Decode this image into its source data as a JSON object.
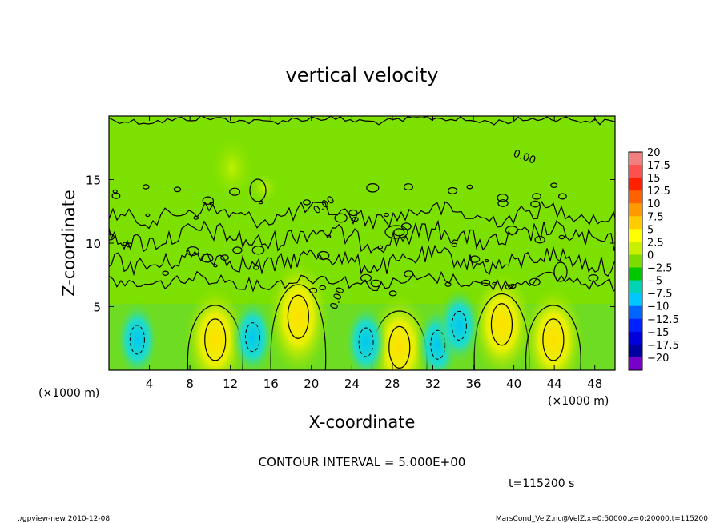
{
  "chart_data": {
    "type": "heatmap",
    "title": "vertical velocity",
    "xlabel": "X-coordinate",
    "ylabel": "Z-coordinate",
    "x_unit_left": "(×1000 m)",
    "x_unit_right": "(×1000 m)",
    "xlim": [
      0,
      50
    ],
    "ylim": [
      0,
      20
    ],
    "x_ticks": [
      4,
      8,
      12,
      16,
      20,
      24,
      28,
      32,
      36,
      40,
      44,
      48
    ],
    "y_ticks": [
      5,
      10,
      15
    ],
    "colorbar": {
      "levels": [
        20,
        17.5,
        15,
        12.5,
        10,
        7.5,
        5,
        2.5,
        0,
        -2.5,
        -5,
        -7.5,
        -10,
        -12.5,
        -15,
        -17.5,
        -20
      ],
      "labels": [
        "20",
        "17.5",
        "15",
        "12.5",
        "10",
        "7.5",
        "5",
        "2.5",
        "0",
        "−2.5",
        "−5",
        "−7.5",
        "−10",
        "−12.5",
        "−15",
        "−17.5",
        "−20"
      ],
      "colors": [
        "#f08080",
        "#ff5050",
        "#ff2000",
        "#ff6000",
        "#ff9900",
        "#ffcc00",
        "#ffff00",
        "#c8f000",
        "#7cdc00",
        "#00c800",
        "#00d2b4",
        "#00c8ff",
        "#0064ff",
        "#0020ff",
        "#0000dc",
        "#0000a0",
        "#7800c8"
      ]
    },
    "contour_label": "0.00",
    "updraft_cores": [
      {
        "x": 10.5,
        "z": 2.4,
        "w": 6
      },
      {
        "x": 18.7,
        "z": 4.2,
        "w": 7
      },
      {
        "x": 28.7,
        "z": 1.8,
        "w": 6
      },
      {
        "x": 38.8,
        "z": 3.6,
        "w": 6
      },
      {
        "x": 43.9,
        "z": 2.4,
        "w": 6
      }
    ],
    "downdraft_cores": [
      {
        "x": 2.8,
        "z": 2.4,
        "w": -5
      },
      {
        "x": 14.2,
        "z": 2.6,
        "w": -5
      },
      {
        "x": 25.4,
        "z": 2.2,
        "w": -4
      },
      {
        "x": 32.5,
        "z": 2.0,
        "w": -4
      },
      {
        "x": 34.6,
        "z": 3.5,
        "w": -5
      }
    ]
  },
  "footer": {
    "contour_interval": "CONTOUR INTERVAL = 5.000E+00",
    "time": "t=115200 s",
    "program": "./gpview-new  2010-12-08",
    "source": "MarsCond_VelZ.nc@VelZ,x=0:50000,z=0:20000,t=115200"
  },
  "colors": {
    "background_field": "#7ce000",
    "updraft": "#f0f000",
    "downdraft": "#20d8d0"
  }
}
